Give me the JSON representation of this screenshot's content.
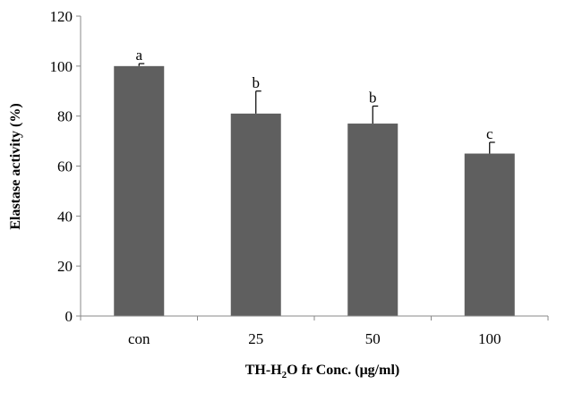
{
  "chart_data": {
    "type": "bar",
    "categories": [
      "con",
      "25",
      "50",
      "100"
    ],
    "values": [
      100,
      81,
      77,
      65
    ],
    "error_plus": [
      1,
      9,
      7,
      4.5
    ],
    "significance_letters": [
      "a",
      "b",
      "b",
      "c"
    ],
    "ylabel": "Elastase activity (%)",
    "xlabel": {
      "prefix": "TH-H",
      "subscript": "2",
      "suffix": "O fr Conc. (μg/ml)"
    },
    "ylim": [
      0,
      120
    ],
    "yticks": [
      "0",
      "20",
      "40",
      "60",
      "80",
      "100",
      "120"
    ],
    "bar_color": "#5f5f5f",
    "grid": false,
    "legend": "none"
  }
}
